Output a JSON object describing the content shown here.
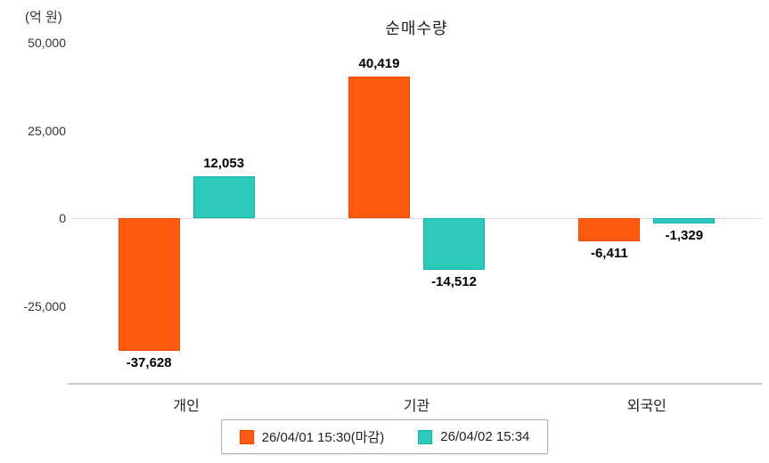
{
  "chart_data": {
    "type": "bar",
    "title": "순매수량",
    "unit": "(억 원)",
    "categories": [
      "개인",
      "기관",
      "외국인"
    ],
    "series": [
      {
        "name": "26/04/01 15:30(마감)",
        "color": "#ff5a0f",
        "border_color": "#ef4800",
        "values": [
          -37628,
          40419,
          -6411
        ],
        "labels": [
          "-37,628",
          "40,419",
          "-6,411"
        ]
      },
      {
        "name": "26/04/02 15:34",
        "color": "#2cc9bc",
        "border_color": "#14b2a6",
        "values": [
          12053,
          -14512,
          -1329
        ],
        "labels": [
          "12,053",
          "-14,512",
          "-1,329"
        ]
      }
    ],
    "ylim": [
      -47000,
      50000
    ],
    "yticks": [
      {
        "value": 50000,
        "label": "50,000"
      },
      {
        "value": 25000,
        "label": "25,000"
      },
      {
        "value": 0,
        "label": "0"
      },
      {
        "value": -25000,
        "label": "-25,000"
      }
    ],
    "grid": false,
    "legend_position": "bottom"
  }
}
